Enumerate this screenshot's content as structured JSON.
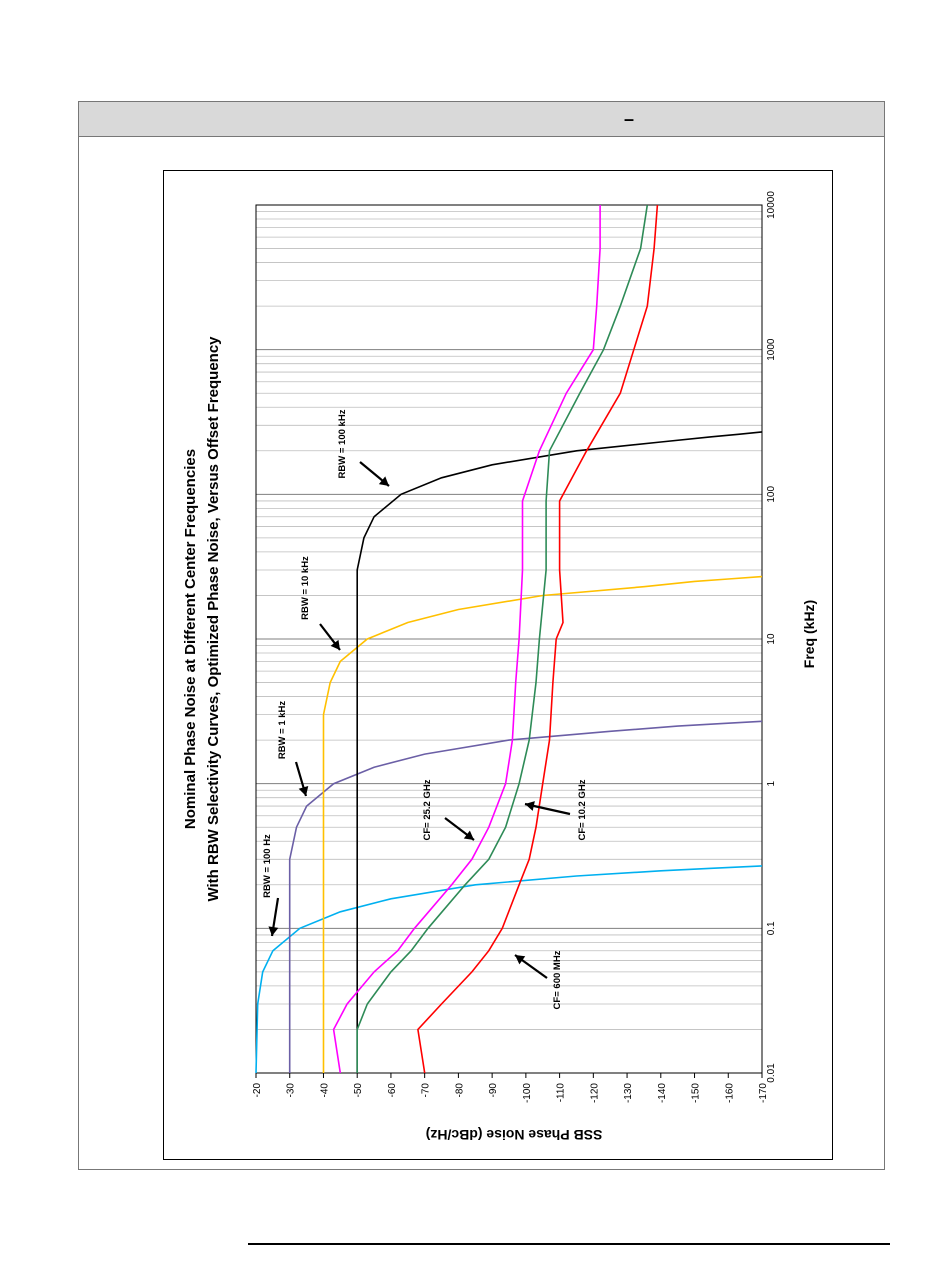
{
  "header": {
    "text": "–"
  },
  "chart_data": {
    "type": "line",
    "orientation": "rotated-90-clockwise",
    "title": "Nominal Phase Noise at Different Center Frequencies",
    "subtitle": "With RBW Selectivity Curves, Optimized Phase Noise, Versus Offset Frequency",
    "xlabel": "Freq (kHz)",
    "ylabel": "SSB Phase Noise (dBc/Hz)",
    "x_scale": "log",
    "xlim": [
      0.01,
      10000
    ],
    "ylim": [
      -20,
      -170
    ],
    "x_ticks": [
      "0.01",
      "0.1",
      "1",
      "10",
      "100",
      "1000",
      "10000"
    ],
    "y_ticks": [
      "-20",
      "-30",
      "-40",
      "-50",
      "-60",
      "-70",
      "-80",
      "-90",
      "-100",
      "-110",
      "-120",
      "-130",
      "-140",
      "-150",
      "-160",
      "-170"
    ],
    "grid": true,
    "series": [
      {
        "name": "RBW = 100 Hz",
        "color": "#00b0f0",
        "x": [
          0.01,
          0.03,
          0.05,
          0.07,
          0.1,
          0.13,
          0.16,
          0.2,
          0.23,
          0.25,
          0.26,
          0.27
        ],
        "y": [
          -20,
          -20.5,
          -22,
          -25,
          -33,
          -45,
          -60,
          -85,
          -115,
          -140,
          -155,
          -170
        ]
      },
      {
        "name": "RBW = 1 kHz",
        "color": "#6b5fa6",
        "x": [
          0.01,
          0.3,
          0.5,
          0.7,
          1.0,
          1.3,
          1.6,
          2.0,
          2.3,
          2.5,
          2.6,
          2.7
        ],
        "y": [
          -30,
          -30,
          -32,
          -35,
          -43,
          -55,
          -70,
          -95,
          -125,
          -145,
          -158,
          -170
        ]
      },
      {
        "name": "RBW = 10 kHz",
        "color": "#ffc000",
        "x": [
          0.01,
          3,
          5,
          7,
          10,
          13,
          16,
          20,
          23,
          25,
          26,
          27
        ],
        "y": [
          -40,
          -40,
          -42,
          -45,
          -53,
          -65,
          -80,
          -105,
          -135,
          -150,
          -160,
          -170
        ]
      },
      {
        "name": "RBW = 100 kHz",
        "color": "#000000",
        "x": [
          0.01,
          30,
          50,
          70,
          100,
          130,
          160,
          200,
          230,
          250,
          260,
          270
        ],
        "y": [
          -50,
          -50,
          -52,
          -55,
          -63,
          -75,
          -90,
          -115,
          -140,
          -155,
          -163,
          -170
        ]
      },
      {
        "name": "CF= 25.2 GHz",
        "color": "#ff00ff",
        "x": [
          0.01,
          0.02,
          0.03,
          0.05,
          0.07,
          0.1,
          0.2,
          0.3,
          0.5,
          1,
          2,
          5,
          10,
          30,
          90,
          200,
          500,
          1000,
          2000,
          5000,
          10000
        ],
        "y": [
          -45,
          -43,
          -47,
          -55,
          -62,
          -67,
          -78,
          -84,
          -89,
          -94,
          -96,
          -97,
          -98,
          -99,
          -99,
          -104,
          -112,
          -120,
          -121,
          -122,
          -122
        ]
      },
      {
        "name": "CF= 10.2 GHz",
        "color": "#2e8b57",
        "x": [
          0.01,
          0.02,
          0.03,
          0.05,
          0.07,
          0.1,
          0.2,
          0.3,
          0.5,
          1,
          2,
          5,
          10,
          30,
          90,
          200,
          500,
          1000,
          2000,
          5000,
          10000
        ],
        "y": [
          -50,
          -50,
          -53,
          -60,
          -66,
          -71,
          -82,
          -89,
          -94,
          -98,
          -101,
          -103,
          -104,
          -106,
          -106,
          -107,
          -116,
          -123,
          -128,
          -134,
          -136
        ]
      },
      {
        "name": "CF= 600 MHz",
        "color": "#ff0000",
        "x": [
          0.01,
          0.02,
          0.03,
          0.05,
          0.07,
          0.1,
          0.2,
          0.3,
          0.5,
          1,
          2,
          5,
          10,
          13,
          30,
          90,
          200,
          500,
          1000,
          2000,
          5000,
          10000
        ],
        "y": [
          -70,
          -68,
          -75,
          -84,
          -89,
          -93,
          -98,
          -101,
          -103,
          -105,
          -107,
          -108,
          -109,
          -111,
          -110,
          -110,
          -118,
          -128,
          -132,
          -136,
          -138,
          -139
        ]
      }
    ]
  }
}
